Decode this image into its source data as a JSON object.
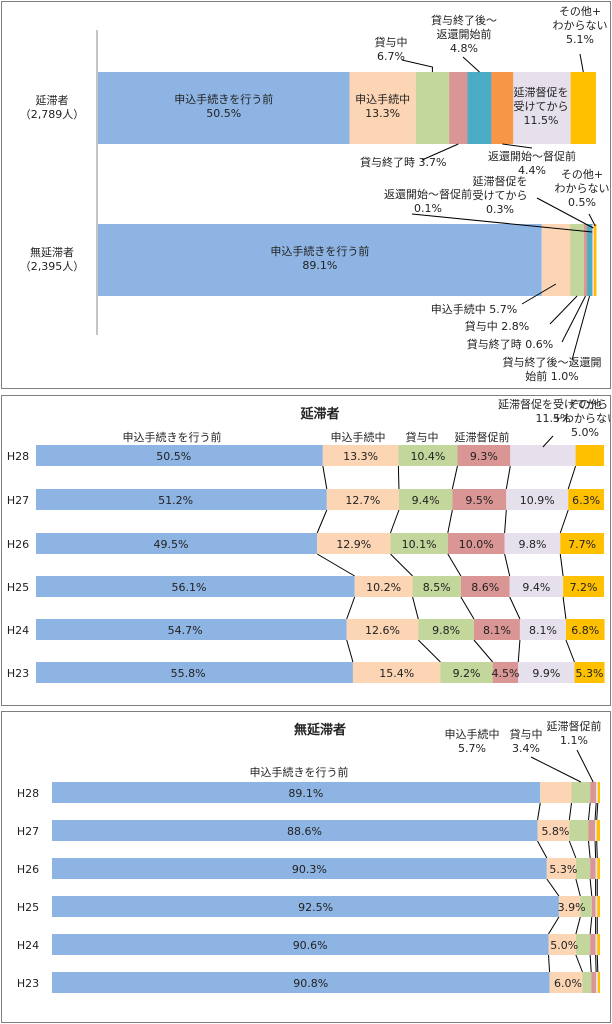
{
  "colors": {
    "c0": "#8eb4e3",
    "c1": "#fcd5b5",
    "c2": "#c3d69b",
    "c3": "#d99694",
    "c4": "#4bacc6",
    "c5": "#f79646",
    "c6": "#e6e0ec",
    "c7": "#ffc000"
  },
  "chart_data": [
    {
      "type": "bar",
      "stacked": true,
      "orientation": "horizontal",
      "percent_unit": "%",
      "categories": [
        "延滞者（2,789人）",
        "無延滞者（2,395人）"
      ],
      "series": [
        {
          "name": "申込手続きを行う前",
          "values": [
            50.5,
            89.1
          ]
        },
        {
          "name": "申込手続中",
          "values": [
            13.3,
            5.7
          ]
        },
        {
          "name": "貸与中",
          "values": [
            6.7,
            2.8
          ]
        },
        {
          "name": "貸与終了時",
          "values": [
            3.7,
            0.6
          ]
        },
        {
          "name": "貸与終了後～返還開始前",
          "values": [
            4.8,
            1.0
          ]
        },
        {
          "name": "返還開始～督促前",
          "values": [
            4.4,
            0.1
          ]
        },
        {
          "name": "延滞督促を受けてから",
          "values": [
            11.5,
            0.3
          ]
        },
        {
          "name": "その他＋わからない",
          "values": [
            5.1,
            0.5
          ]
        }
      ]
    },
    {
      "type": "bar",
      "stacked": true,
      "orientation": "horizontal",
      "title": "延滞者",
      "categories": [
        "H28",
        "H27",
        "H26",
        "H25",
        "H24",
        "H23"
      ],
      "series": [
        {
          "name": "申込手続きを行う前",
          "values": [
            50.5,
            51.2,
            49.5,
            56.1,
            54.7,
            55.8
          ]
        },
        {
          "name": "申込手続中",
          "values": [
            13.3,
            12.7,
            12.9,
            10.2,
            12.6,
            15.4
          ]
        },
        {
          "name": "貸与中",
          "values": [
            10.4,
            9.4,
            10.1,
            8.5,
            9.8,
            9.2
          ]
        },
        {
          "name": "延滞督促前",
          "values": [
            9.3,
            9.5,
            10.0,
            8.6,
            8.1,
            4.5
          ]
        },
        {
          "name": "延滞督促を受けてから",
          "values": [
            11.5,
            10.9,
            9.8,
            9.4,
            8.1,
            9.9
          ]
        },
        {
          "name": "その他＋わからない",
          "values": [
            5.0,
            6.3,
            7.7,
            7.2,
            6.8,
            5.3
          ]
        }
      ]
    },
    {
      "type": "bar",
      "stacked": true,
      "orientation": "horizontal",
      "title": "無延滞者",
      "categories": [
        "H28",
        "H27",
        "H26",
        "H25",
        "H24",
        "H23"
      ],
      "series": [
        {
          "name": "申込手続きを行う前",
          "values": [
            89.1,
            88.6,
            90.3,
            92.5,
            90.6,
            90.8
          ]
        },
        {
          "name": "申込手続中",
          "values": [
            5.7,
            5.8,
            5.3,
            3.9,
            5.0,
            6.0
          ]
        },
        {
          "name": "貸与中",
          "values": [
            3.4,
            3.5,
            2.6,
            2.1,
            2.6,
            1.6
          ]
        },
        {
          "name": "延滞督促前",
          "values": [
            1.1,
            1.2,
            1.0,
            0.7,
            1.0,
            0.9
          ]
        },
        {
          "name": "延滞督促を受けてから",
          "values": [
            0.3,
            0.3,
            0.3,
            0.3,
            0.3,
            0.3
          ]
        },
        {
          "name": "その他＋わからない",
          "values": [
            0.4,
            0.6,
            0.5,
            0.5,
            0.5,
            0.4
          ]
        }
      ]
    }
  ],
  "panel1": {
    "cat_labels": [
      [
        "延滞者",
        "（2,789人）"
      ],
      [
        "無延滞者",
        "（2,395人）"
      ]
    ],
    "bar1_inbar": [
      [
        "申込手続きを行う前",
        "50.5%"
      ],
      [
        "申込手続中",
        "13.3%"
      ]
    ],
    "bar1_callouts": [
      [
        "貸与中",
        "6.7%"
      ],
      [
        "貸与終了時 3.7%"
      ],
      [
        "貸与終了後～",
        "返還開始前",
        "4.8%"
      ],
      [
        "返還開始～督促前",
        "4.4%"
      ],
      [
        "延滞督促を",
        "受けてから",
        "11.5%"
      ],
      [
        "その他+",
        "わからない",
        "5.1%"
      ]
    ],
    "bar2_inbar": [
      [
        "申込手続きを行う前",
        "89.1%"
      ]
    ],
    "bar2_callouts": [
      [
        "申込手続中 5.7%"
      ],
      [
        "貸与中 2.8%"
      ],
      [
        "貸与終了時 0.6%"
      ],
      [
        "貸与終了後～返還開",
        "始前 1.0%"
      ],
      [
        "返還開始～督促前",
        "0.1%"
      ],
      [
        "延滞督促を",
        "受けてから",
        "0.3%"
      ],
      [
        "その他+",
        "わからない",
        "0.5%"
      ]
    ]
  },
  "panel2": {
    "header_labels": [
      [
        "申込手続きを行う前"
      ],
      [
        "申込手続中"
      ],
      [
        "貸与中"
      ],
      [
        "延滞督促前"
      ],
      [
        "延滞督促を受けてから",
        "11.5%"
      ],
      [
        "その他",
        "＋わからない",
        "5.0%"
      ]
    ],
    "value_labels": [
      [
        "50.5%",
        "13.3%",
        "10.4%",
        "9.3%",
        "",
        ""
      ],
      [
        "51.2%",
        "12.7%",
        "9.4%",
        "9.5%",
        "10.9%",
        "6.3%"
      ],
      [
        "49.5%",
        "12.9%",
        "10.1%",
        "10.0%",
        "9.8%",
        "7.7%"
      ],
      [
        "56.1%",
        "10.2%",
        "8.5%",
        "8.6%",
        "9.4%",
        "7.2%"
      ],
      [
        "54.7%",
        "12.6%",
        "9.8%",
        "8.1%",
        "8.1%",
        "6.8%"
      ],
      [
        "55.8%",
        "15.4%",
        "9.2%",
        "4.5%",
        "9.9%",
        "5.3%"
      ]
    ]
  },
  "panel3": {
    "header_labels": [
      [
        "申込手続きを行う前"
      ],
      [
        "申込手続中",
        "5.7%"
      ],
      [
        "貸与中",
        "3.4%"
      ],
      [
        "延滞督促前",
        "1.1%"
      ]
    ],
    "value_labels": [
      [
        "89.1%",
        ""
      ],
      [
        "88.6%",
        "5.8%"
      ],
      [
        "90.3%",
        "5.3%"
      ],
      [
        "92.5%",
        "3.9%"
      ],
      [
        "90.6%",
        "5.0%"
      ],
      [
        "90.8%",
        "6.0%"
      ]
    ]
  }
}
